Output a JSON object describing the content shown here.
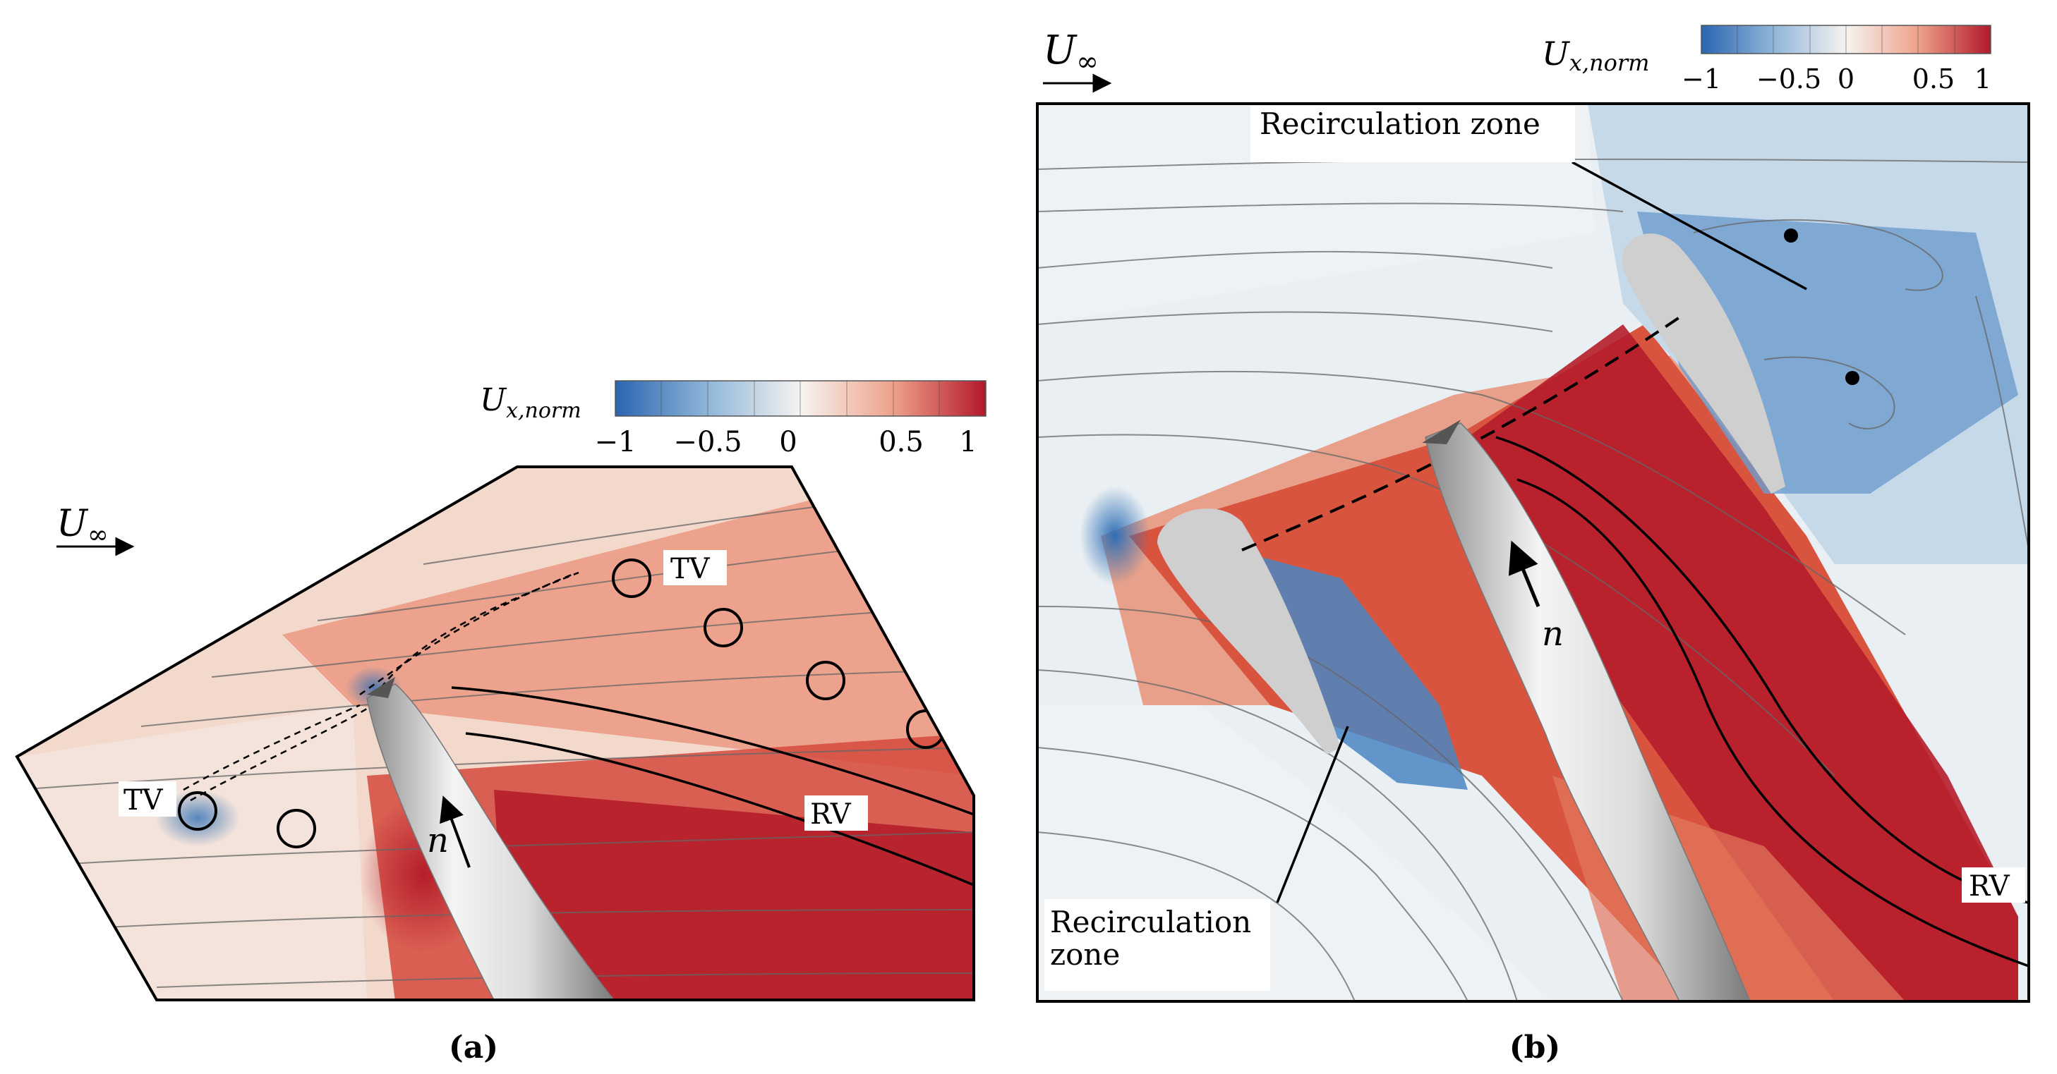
{
  "panels": [
    {
      "id": "a",
      "caption": "(a)",
      "colorbar": {
        "label_main": "U",
        "label_sub": "x,norm",
        "ticks": [
          "−1",
          "−0.5",
          "0",
          "0.5",
          "1"
        ]
      },
      "freestream_main": "U",
      "freestream_sub": "∞",
      "labels": {
        "tv_upper": "TV",
        "tv_lower": "TV",
        "rv": "RV",
        "normal": "n"
      }
    },
    {
      "id": "b",
      "caption": "(b)",
      "colorbar": {
        "label_main": "U",
        "label_sub": "x,norm",
        "ticks": [
          "−1",
          "−0.5",
          "0",
          "0.5",
          "1"
        ]
      },
      "freestream_main": "U",
      "freestream_sub": "∞",
      "labels": {
        "recirc_top": "Recirculation zone",
        "recirc_bottom_line1": "Recirculation",
        "recirc_bottom_line2": "zone",
        "rv": "RV",
        "normal": "n"
      }
    }
  ],
  "colors": {
    "blue": "#2f6fb5",
    "lightblue": "#c9dcea",
    "white": "#f4f1ee",
    "lightred": "#f0b8a2",
    "red": "#e06a52",
    "darkred": "#b51d2a",
    "shaft": "#c8c8c8",
    "foil": "#cfcfcf"
  }
}
